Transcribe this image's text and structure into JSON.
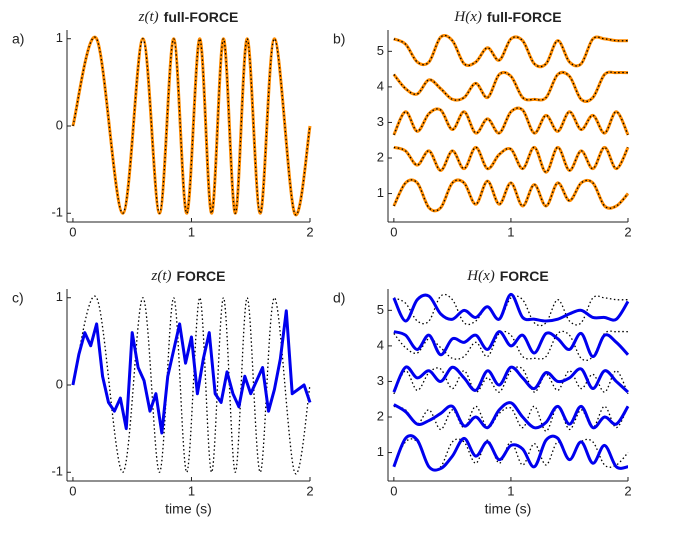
{
  "chart_data": [
    {
      "type": "line",
      "panel": "a)",
      "title_var": "z(t)",
      "title": "full-FORCE",
      "xlim": [
        -0.05,
        2
      ],
      "xticks": [
        0,
        1,
        2
      ],
      "ylim": [
        -1.1,
        1.1
      ],
      "yticks": [
        -1,
        0,
        1
      ],
      "series": [
        {
          "color": "#ff8c00",
          "style": "solid",
          "width": 3,
          "smooth": true,
          "x": [
            0,
            0.2,
            0.42,
            0.59,
            0.73,
            0.85,
            0.96,
            1.07,
            1.17,
            1.27,
            1.37,
            1.47,
            1.58,
            1.7,
            1.87,
            2
          ],
          "values": [
            0,
            1,
            -1,
            1,
            -1,
            1,
            -1,
            1,
            -1,
            1,
            -1,
            1,
            -1,
            1,
            -1,
            0
          ]
        },
        {
          "color": "#000000",
          "style": "dotted",
          "width": 1.3,
          "smooth": true,
          "x": [
            0,
            0.2,
            0.42,
            0.59,
            0.73,
            0.85,
            0.96,
            1.07,
            1.17,
            1.27,
            1.37,
            1.47,
            1.58,
            1.7,
            1.87,
            2
          ],
          "values": [
            0,
            1,
            -1,
            1,
            -1,
            1,
            -1,
            1,
            -1,
            1,
            -1,
            1,
            -1,
            1,
            -1,
            0
          ]
        }
      ]
    },
    {
      "type": "line",
      "panel": "b)",
      "title_var": "H(x)",
      "title": "full-FORCE",
      "xlim": [
        -0.05,
        2
      ],
      "xticks": [
        0,
        1,
        2
      ],
      "ylim": [
        0.2,
        5.6
      ],
      "yticks": [
        1,
        2,
        3,
        4,
        5
      ],
      "x": [
        0,
        0.1,
        0.2,
        0.3,
        0.4,
        0.5,
        0.6,
        0.7,
        0.8,
        0.9,
        1.0,
        1.1,
        1.2,
        1.3,
        1.4,
        1.5,
        1.6,
        1.7,
        1.8,
        1.9,
        2.0
      ],
      "series": [
        {
          "color": "#ff8c00",
          "style": "solid",
          "width": 3,
          "smooth": true,
          "values": [
            0.65,
            1.3,
            1.3,
            0.6,
            0.6,
            1.3,
            1.3,
            0.7,
            1.35,
            0.7,
            1.3,
            0.65,
            1.25,
            0.65,
            1.3,
            0.8,
            1.3,
            1.3,
            0.65,
            0.65,
            1.0
          ]
        },
        {
          "color": "#ff8c00",
          "style": "solid",
          "width": 3,
          "smooth": true,
          "values": [
            2.3,
            2.2,
            1.8,
            2.2,
            1.65,
            2.2,
            1.7,
            2.3,
            1.7,
            2.1,
            2.25,
            1.7,
            2.3,
            1.6,
            2.3,
            1.65,
            2.2,
            1.7,
            2.3,
            1.7,
            2.3
          ]
        },
        {
          "color": "#ff8c00",
          "style": "solid",
          "width": 3,
          "smooth": true,
          "values": [
            2.65,
            3.3,
            2.75,
            3.25,
            3.35,
            2.8,
            3.3,
            2.7,
            3.1,
            2.7,
            3.3,
            3.35,
            2.7,
            3.2,
            2.75,
            3.3,
            2.8,
            3.2,
            2.7,
            3.3,
            2.65
          ]
        },
        {
          "color": "#ff8c00",
          "style": "solid",
          "width": 3,
          "smooth": true,
          "values": [
            4.35,
            3.95,
            3.8,
            4.2,
            3.95,
            3.65,
            3.7,
            4.1,
            3.7,
            4.35,
            4.3,
            3.7,
            3.65,
            3.7,
            4.35,
            4.3,
            3.65,
            3.7,
            4.35,
            4.4,
            4.4
          ]
        },
        {
          "color": "#ff8c00",
          "style": "solid",
          "width": 3,
          "smooth": true,
          "values": [
            5.35,
            5.2,
            4.7,
            4.7,
            5.4,
            5.3,
            4.65,
            4.7,
            5.1,
            4.75,
            5.35,
            5.3,
            4.65,
            4.65,
            5.3,
            4.7,
            4.65,
            5.35,
            5.35,
            5.3,
            5.3
          ]
        },
        {
          "color": "#000000",
          "style": "dotted",
          "width": 1.3,
          "smooth": true,
          "values": [
            0.65,
            1.3,
            1.3,
            0.6,
            0.6,
            1.3,
            1.3,
            0.7,
            1.35,
            0.7,
            1.3,
            0.65,
            1.25,
            0.65,
            1.3,
            0.8,
            1.3,
            1.3,
            0.65,
            0.65,
            1.0
          ]
        },
        {
          "color": "#000000",
          "style": "dotted",
          "width": 1.3,
          "smooth": true,
          "values": [
            2.3,
            2.2,
            1.8,
            2.2,
            1.65,
            2.2,
            1.7,
            2.3,
            1.7,
            2.1,
            2.25,
            1.7,
            2.3,
            1.6,
            2.3,
            1.65,
            2.2,
            1.7,
            2.3,
            1.7,
            2.3
          ]
        },
        {
          "color": "#000000",
          "style": "dotted",
          "width": 1.3,
          "smooth": true,
          "values": [
            2.65,
            3.3,
            2.75,
            3.25,
            3.35,
            2.8,
            3.3,
            2.7,
            3.1,
            2.7,
            3.3,
            3.35,
            2.7,
            3.2,
            2.75,
            3.3,
            2.8,
            3.2,
            2.7,
            3.3,
            2.65
          ]
        },
        {
          "color": "#000000",
          "style": "dotted",
          "width": 1.3,
          "smooth": true,
          "values": [
            4.35,
            3.95,
            3.8,
            4.2,
            3.95,
            3.65,
            3.7,
            4.1,
            3.7,
            4.35,
            4.3,
            3.7,
            3.65,
            3.7,
            4.35,
            4.3,
            3.65,
            3.7,
            4.35,
            4.4,
            4.4
          ]
        },
        {
          "color": "#000000",
          "style": "dotted",
          "width": 1.3,
          "smooth": true,
          "values": [
            5.35,
            5.2,
            4.7,
            4.7,
            5.4,
            5.3,
            4.65,
            4.7,
            5.1,
            4.75,
            5.35,
            5.3,
            4.65,
            4.65,
            5.3,
            4.7,
            4.65,
            5.35,
            5.35,
            5.3,
            5.3
          ]
        }
      ]
    },
    {
      "type": "line",
      "panel": "c)",
      "title_var": "z(t)",
      "title": "FORCE",
      "xlabel": "time (s)",
      "xlim": [
        -0.05,
        2
      ],
      "xticks": [
        0,
        1,
        2
      ],
      "ylim": [
        -1.1,
        1.1
      ],
      "yticks": [
        -1,
        0,
        1
      ],
      "series": [
        {
          "color": "#000000",
          "style": "dotted",
          "width": 1.3,
          "smooth": true,
          "x": [
            0,
            0.2,
            0.42,
            0.59,
            0.73,
            0.85,
            0.96,
            1.07,
            1.17,
            1.27,
            1.37,
            1.47,
            1.58,
            1.7,
            1.87,
            2
          ],
          "values": [
            0,
            1,
            -1,
            1,
            -1,
            1,
            -1,
            1,
            -1,
            1,
            -1,
            1,
            -1,
            1,
            -1,
            0
          ]
        },
        {
          "color": "#0000ee",
          "style": "solid",
          "width": 3,
          "smooth": false,
          "x": [
            0,
            0.05,
            0.1,
            0.15,
            0.2,
            0.25,
            0.3,
            0.35,
            0.4,
            0.45,
            0.5,
            0.55,
            0.6,
            0.65,
            0.7,
            0.75,
            0.8,
            0.85,
            0.9,
            0.95,
            1.0,
            1.05,
            1.1,
            1.15,
            1.2,
            1.25,
            1.3,
            1.35,
            1.4,
            1.45,
            1.5,
            1.55,
            1.6,
            1.65,
            1.7,
            1.75,
            1.8,
            1.85,
            1.9,
            1.95,
            2.0
          ],
          "values": [
            0,
            0.35,
            0.6,
            0.45,
            0.7,
            0.1,
            -0.2,
            -0.3,
            -0.15,
            -0.5,
            0.6,
            0.2,
            0.05,
            -0.3,
            -0.1,
            -0.55,
            0.1,
            0.4,
            0.7,
            0.25,
            0.55,
            -0.1,
            0.3,
            0.6,
            -0.1,
            -0.2,
            0.15,
            -0.1,
            -0.25,
            0.1,
            -0.1,
            0.05,
            0.2,
            -0.3,
            -0.05,
            0.3,
            0.85,
            -0.1,
            -0.05,
            0,
            -0.2
          ]
        }
      ]
    },
    {
      "type": "line",
      "panel": "d)",
      "title_var": "H(x)",
      "title": "FORCE",
      "xlabel": "time (s)",
      "xlim": [
        -0.05,
        2
      ],
      "xticks": [
        0,
        1,
        2
      ],
      "ylim": [
        0.2,
        5.6
      ],
      "yticks": [
        1,
        2,
        3,
        4,
        5
      ],
      "x": [
        0,
        0.1,
        0.2,
        0.3,
        0.4,
        0.5,
        0.6,
        0.7,
        0.8,
        0.9,
        1.0,
        1.1,
        1.2,
        1.3,
        1.4,
        1.5,
        1.6,
        1.7,
        1.8,
        1.9,
        2.0
      ],
      "series": [
        {
          "color": "#000000",
          "style": "dotted",
          "width": 1.3,
          "smooth": true,
          "values": [
            0.65,
            1.3,
            1.3,
            0.6,
            0.6,
            1.3,
            1.3,
            0.7,
            1.35,
            0.7,
            1.3,
            0.65,
            1.25,
            0.65,
            1.3,
            0.8,
            1.3,
            1.3,
            0.65,
            0.65,
            1.0
          ]
        },
        {
          "color": "#000000",
          "style": "dotted",
          "width": 1.3,
          "smooth": true,
          "values": [
            2.3,
            2.2,
            1.8,
            2.2,
            1.65,
            2.2,
            1.7,
            2.3,
            1.7,
            2.1,
            2.25,
            1.7,
            2.3,
            1.6,
            2.3,
            1.65,
            2.2,
            1.7,
            2.3,
            1.7,
            2.3
          ]
        },
        {
          "color": "#000000",
          "style": "dotted",
          "width": 1.3,
          "smooth": true,
          "values": [
            2.65,
            3.3,
            2.75,
            3.25,
            3.35,
            2.8,
            3.3,
            2.7,
            3.1,
            2.7,
            3.3,
            3.35,
            2.7,
            3.2,
            2.75,
            3.3,
            2.8,
            3.2,
            2.7,
            3.3,
            2.65
          ]
        },
        {
          "color": "#000000",
          "style": "dotted",
          "width": 1.3,
          "smooth": true,
          "values": [
            4.35,
            3.95,
            3.8,
            4.2,
            3.95,
            3.65,
            3.7,
            4.1,
            3.7,
            4.35,
            4.3,
            3.7,
            3.65,
            3.7,
            4.35,
            4.3,
            3.65,
            3.7,
            4.35,
            4.4,
            4.4
          ]
        },
        {
          "color": "#000000",
          "style": "dotted",
          "width": 1.3,
          "smooth": true,
          "values": [
            5.35,
            5.2,
            4.7,
            4.7,
            5.4,
            5.3,
            4.65,
            4.7,
            5.1,
            4.75,
            5.35,
            5.3,
            4.65,
            4.65,
            5.3,
            4.7,
            4.65,
            5.35,
            5.35,
            5.3,
            5.3
          ]
        },
        {
          "color": "#0000ee",
          "style": "solid",
          "width": 3,
          "smooth": true,
          "values": [
            0.6,
            1.4,
            1.35,
            0.6,
            0.55,
            0.9,
            1.4,
            0.9,
            1.3,
            0.8,
            1.2,
            1.1,
            0.6,
            1.35,
            1.4,
            0.8,
            1.3,
            0.7,
            1.2,
            0.6,
            0.6
          ]
        },
        {
          "color": "#0000ee",
          "style": "solid",
          "width": 3,
          "smooth": true,
          "values": [
            2.35,
            2.15,
            1.8,
            1.9,
            2.1,
            2.3,
            1.75,
            2.0,
            1.7,
            2.2,
            2.4,
            2.0,
            1.7,
            1.85,
            2.3,
            1.8,
            2.3,
            1.7,
            2.0,
            1.8,
            2.3
          ]
        },
        {
          "color": "#0000ee",
          "style": "solid",
          "width": 3,
          "smooth": true,
          "values": [
            2.7,
            3.4,
            3.1,
            3.3,
            3.0,
            3.4,
            3.1,
            2.75,
            3.3,
            2.9,
            3.4,
            3.1,
            2.8,
            3.25,
            3.0,
            3.1,
            3.35,
            2.8,
            3.3,
            3.0,
            2.7
          ]
        },
        {
          "color": "#0000ee",
          "style": "solid",
          "width": 3,
          "smooth": true,
          "values": [
            4.4,
            4.3,
            3.9,
            4.3,
            3.75,
            4.2,
            4.1,
            4.3,
            3.9,
            4.4,
            4.0,
            4.3,
            3.8,
            4.35,
            4.2,
            3.9,
            4.35,
            3.7,
            4.3,
            4.1,
            3.75
          ]
        },
        {
          "color": "#0000ee",
          "style": "solid",
          "width": 3,
          "smooth": true,
          "values": [
            5.35,
            4.7,
            5.3,
            5.4,
            4.9,
            4.75,
            5.0,
            4.8,
            5.1,
            4.75,
            5.45,
            4.8,
            4.75,
            4.7,
            4.75,
            4.9,
            5.0,
            4.8,
            4.8,
            4.75,
            5.25
          ]
        }
      ]
    }
  ]
}
